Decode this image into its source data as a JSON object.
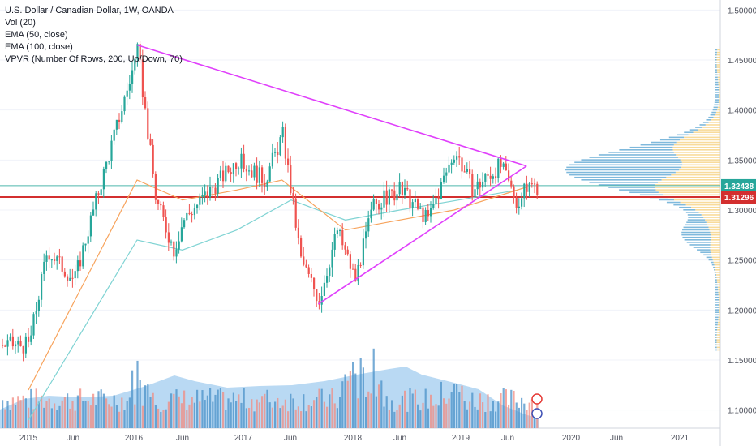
{
  "legend": {
    "title": "U.S. Dollar / Canadian Dollar, 1W, OANDA",
    "indicators": [
      "Vol (20)",
      "EMA (50, close)",
      "EMA (100, close)",
      "VPVR (Number Of Rows, 200, Up/Down, 70)"
    ]
  },
  "price_badges": {
    "last": "1.32438",
    "level": "1.31296"
  },
  "colors": {
    "up": "#26a69a",
    "down": "#ef5350",
    "ema50": "#f7a35c",
    "ema100": "#7fd3d3",
    "triangle": "#e040fb",
    "level_line": "#d32f2f",
    "last_line": "#4db6ac",
    "vp_up": "#5fa8d3",
    "vp_down": "#f7d58a",
    "volume_up": "#4a90c8",
    "volume_down": "#f28b82"
  },
  "chart_data": {
    "type": "candlestick",
    "symbol": "USDCAD",
    "timeframe": "1W",
    "ylim": [
      1.09,
      1.51
    ],
    "y_ticks": [
      "1.50000",
      "1.45000",
      "1.40000",
      "1.35000",
      "1.30000",
      "1.25000",
      "1.20000",
      "1.15000",
      "1.10000"
    ],
    "x_ticks": [
      "2015",
      "Jun",
      "2016",
      "Jun",
      "2017",
      "Jun",
      "2018",
      "Jun",
      "2019",
      "Jun",
      "2020",
      "Jun",
      "2021"
    ],
    "price_path": [
      [
        "2015",
        1.165
      ],
      [
        "Mar 2015",
        1.26
      ],
      [
        "Jun 2015",
        1.23
      ],
      [
        "Sep 2015",
        1.33
      ],
      [
        "Jan 2016",
        1.459
      ],
      [
        "Mar 2016",
        1.31
      ],
      [
        "May 2016",
        1.26
      ],
      [
        "Jun 2016",
        1.29
      ],
      [
        "Sep 2016",
        1.32
      ],
      [
        "Dec 2016",
        1.35
      ],
      [
        "Mar 2017",
        1.33
      ],
      [
        "May 2017",
        1.375
      ],
      [
        "Jul 2017",
        1.25
      ],
      [
        "Sep 2017",
        1.21
      ],
      [
        "Nov 2017",
        1.28
      ],
      [
        "Jan 2018",
        1.23
      ],
      [
        "Mar 2018",
        1.305
      ],
      [
        "Jun 2018",
        1.32
      ],
      [
        "Sep 2018",
        1.29
      ],
      [
        "Dec 2018",
        1.36
      ],
      [
        "Feb 2019",
        1.32
      ],
      [
        "May 2019",
        1.345
      ],
      [
        "Jul 2019",
        1.305
      ],
      [
        "Aug 2019",
        1.324
      ]
    ],
    "ema50_path": [
      [
        "2015",
        1.12
      ],
      [
        "Jan 2016",
        1.33
      ],
      [
        "Jun 2016",
        1.31
      ],
      [
        "Dec 2016",
        1.32
      ],
      [
        "May 2017",
        1.33
      ],
      [
        "Dec 2017",
        1.28
      ],
      [
        "Jun 2018",
        1.29
      ],
      [
        "Dec 2018",
        1.3
      ],
      [
        "Aug 2019",
        1.323
      ]
    ],
    "ema100_path": [
      [
        "2015",
        1.09
      ],
      [
        "Jan 2016",
        1.27
      ],
      [
        "Jun 2016",
        1.26
      ],
      [
        "Dec 2016",
        1.28
      ],
      [
        "Jun 2017",
        1.31
      ],
      [
        "Dec 2017",
        1.29
      ],
      [
        "Jun 2018",
        1.3
      ],
      [
        "Jul 2019",
        1.32
      ]
    ],
    "triangle_upper": [
      [
        "Jan 2016",
        1.465
      ],
      [
        "Aug 2019",
        1.344
      ]
    ],
    "triangle_lower": [
      [
        "Sep 2017",
        1.206
      ],
      [
        "Aug 2019",
        1.344
      ]
    ],
    "horizontal_level": 1.31296,
    "last_price": 1.32438,
    "volume_profile_peak": 1.34
  }
}
